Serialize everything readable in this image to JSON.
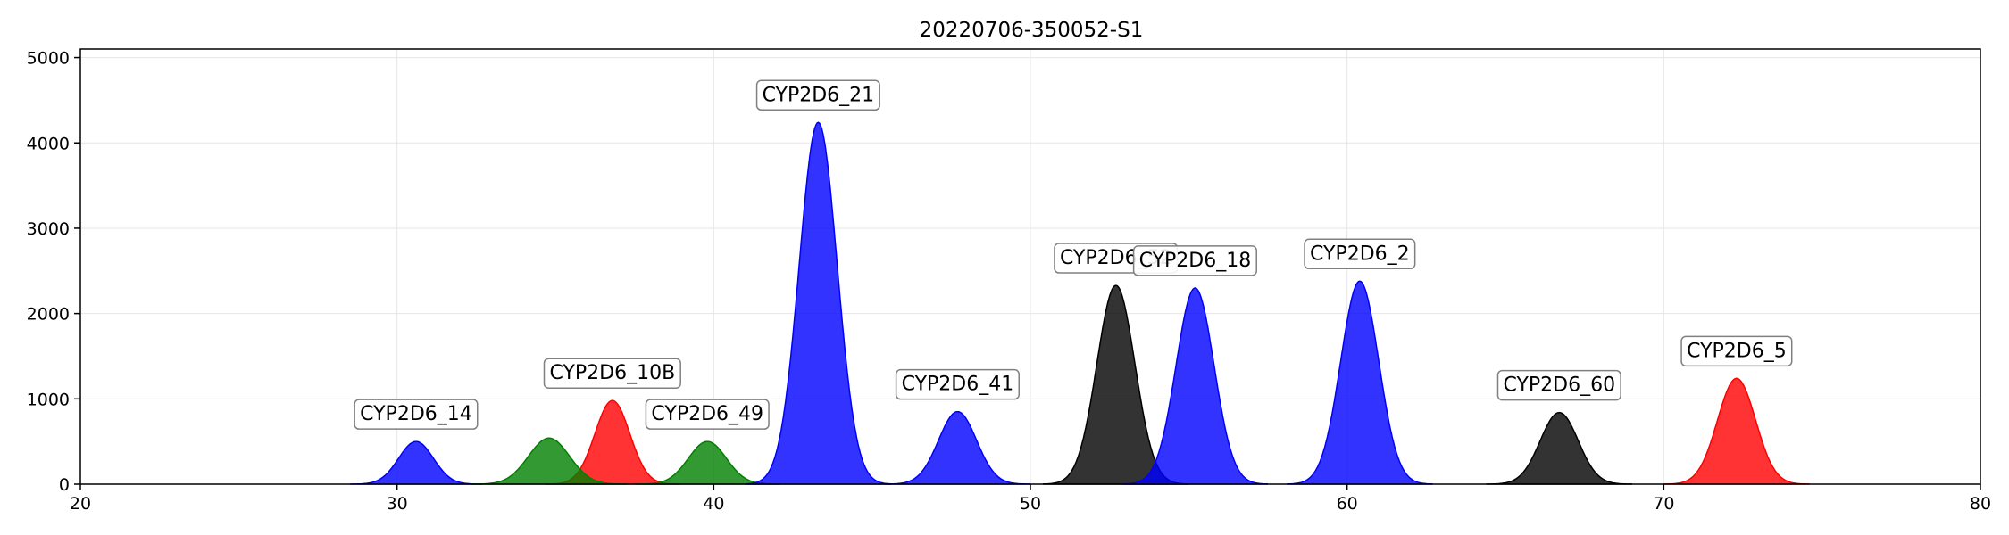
{
  "chart_data": {
    "type": "area",
    "title": "20220706-350052-S1",
    "xlabel": "",
    "ylabel": "",
    "xlim": [
      20,
      80
    ],
    "ylim": [
      0,
      5100
    ],
    "x_ticks": [
      20,
      30,
      40,
      50,
      60,
      70,
      80
    ],
    "y_ticks": [
      0,
      1000,
      2000,
      3000,
      4000,
      5000
    ],
    "grid": true,
    "peaks": [
      {
        "label": "CYP2D6_14",
        "center": 30.6,
        "height": 500,
        "width": 0.55,
        "color": "#0000ff"
      },
      {
        "label": "CYP2D6_10B",
        "center": 36.8,
        "height": 980,
        "width": 0.55,
        "color": "#ff0000"
      },
      {
        "label": "",
        "center": 34.8,
        "height": 540,
        "width": 0.65,
        "color": "#008000"
      },
      {
        "label": "CYP2D6_49",
        "center": 39.8,
        "height": 500,
        "width": 0.6,
        "color": "#008000"
      },
      {
        "label": "CYP2D6_21",
        "center": 43.3,
        "height": 4240,
        "width": 0.6,
        "color": "#0000ff"
      },
      {
        "label": "CYP2D6_41",
        "center": 47.7,
        "height": 850,
        "width": 0.6,
        "color": "#0000ff"
      },
      {
        "label": "CYP2D6_52",
        "center": 52.7,
        "height": 2330,
        "width": 0.6,
        "color": "#000000"
      },
      {
        "label": "CYP2D6_18",
        "center": 55.2,
        "height": 2300,
        "width": 0.6,
        "color": "#0000ff"
      },
      {
        "label": "CYP2D6_2",
        "center": 60.4,
        "height": 2380,
        "width": 0.6,
        "color": "#0000ff"
      },
      {
        "label": "CYP2D6_60",
        "center": 66.7,
        "height": 840,
        "width": 0.6,
        "color": "#000000"
      },
      {
        "label": "CYP2D6_5",
        "center": 72.3,
        "height": 1240,
        "width": 0.6,
        "color": "#ff0000"
      }
    ]
  }
}
